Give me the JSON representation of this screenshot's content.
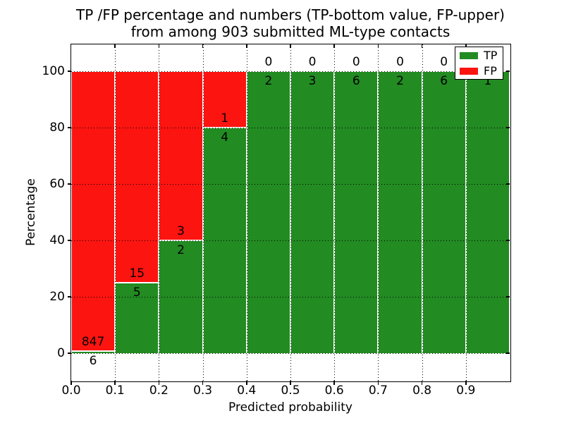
{
  "title": {
    "line1": "TP /FP percentage and numbers (TP-bottom value, FP-upper)",
    "line2": "from among 903 submitted ML-type contacts"
  },
  "axes": {
    "xlabel": "Predicted probability",
    "ylabel": "Percentage",
    "x_tick_labels": [
      "0.0",
      "0.1",
      "0.2",
      "0.3",
      "0.4",
      "0.5",
      "0.6",
      "0.7",
      "0.8",
      "0.9"
    ],
    "x_tick_values": [
      0.0,
      0.1,
      0.2,
      0.3,
      0.4,
      0.5,
      0.6,
      0.7,
      0.8,
      0.9
    ],
    "y_tick_labels": [
      "0",
      "20",
      "40",
      "60",
      "80",
      "100"
    ],
    "y_tick_values": [
      0,
      20,
      40,
      60,
      80,
      100
    ],
    "xlim": [
      0.0,
      1.0
    ],
    "ylim": [
      -9.75,
      109.5
    ],
    "grid": "dotted"
  },
  "legend": {
    "location": "upper right",
    "items": [
      {
        "label": "TP",
        "color": "#228b22"
      },
      {
        "label": "FP",
        "color": "#fc1410"
      }
    ]
  },
  "colors": {
    "tp": "#228b22",
    "fp": "#fc1410",
    "grid": "#000000",
    "background": "#ffffff"
  },
  "chart_data": {
    "type": "bar",
    "stacked": true,
    "orientation": "vertical",
    "title": "TP /FP percentage and numbers (TP-bottom value, FP-upper) from among 903 submitted ML-type contacts",
    "xlabel": "Predicted probability",
    "ylabel": "Percentage",
    "total_contacts": 903,
    "bin_width": 0.1,
    "note": "Each bar is normalized to 100%; label above TP/FP boundary = FP count, label below = TP count",
    "bins": [
      {
        "x0": 0.0,
        "x1": 0.1,
        "tp": 6,
        "fp": 847,
        "tp_pct": 0.7,
        "fp_pct": 99.3
      },
      {
        "x0": 0.1,
        "x1": 0.2,
        "tp": 5,
        "fp": 15,
        "tp_pct": 25,
        "fp_pct": 75
      },
      {
        "x0": 0.2,
        "x1": 0.3,
        "tp": 2,
        "fp": 3,
        "tp_pct": 40,
        "fp_pct": 60
      },
      {
        "x0": 0.3,
        "x1": 0.4,
        "tp": 4,
        "fp": 1,
        "tp_pct": 80,
        "fp_pct": 20
      },
      {
        "x0": 0.4,
        "x1": 0.5,
        "tp": 2,
        "fp": 0,
        "tp_pct": 100,
        "fp_pct": 0
      },
      {
        "x0": 0.5,
        "x1": 0.6,
        "tp": 3,
        "fp": 0,
        "tp_pct": 100,
        "fp_pct": 0
      },
      {
        "x0": 0.6,
        "x1": 0.7,
        "tp": 6,
        "fp": 0,
        "tp_pct": 100,
        "fp_pct": 0
      },
      {
        "x0": 0.7,
        "x1": 0.8,
        "tp": 2,
        "fp": 0,
        "tp_pct": 100,
        "fp_pct": 0
      },
      {
        "x0": 0.8,
        "x1": 0.9,
        "tp": 6,
        "fp": 0,
        "tp_pct": 100,
        "fp_pct": 0
      },
      {
        "x0": 0.9,
        "x1": 1.0,
        "tp": 1,
        "fp": 0,
        "tp_pct": 100,
        "fp_pct": 0
      }
    ],
    "series": [
      {
        "name": "TP",
        "position": "bottom",
        "color": "#228b22",
        "values": [
          6,
          5,
          2,
          4,
          2,
          3,
          6,
          2,
          6,
          1
        ]
      },
      {
        "name": "FP",
        "position": "top",
        "color": "#fc1410",
        "values": [
          847,
          15,
          3,
          1,
          0,
          0,
          0,
          0,
          0,
          0
        ]
      }
    ]
  }
}
